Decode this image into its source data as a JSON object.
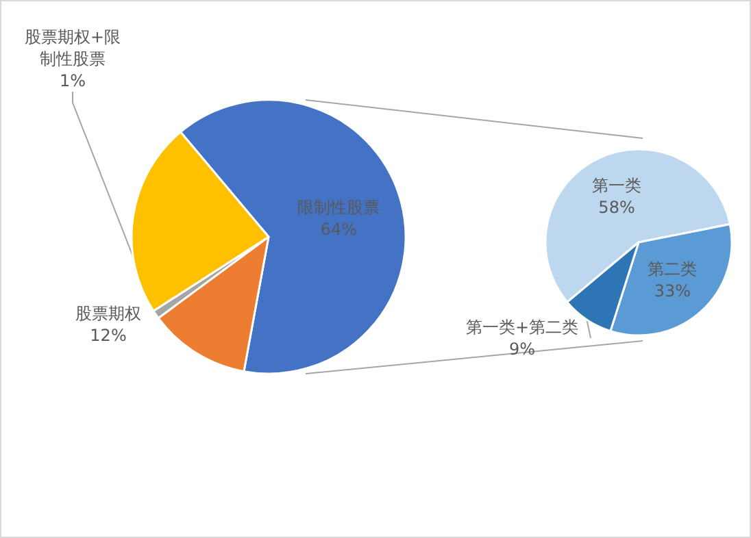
{
  "chart_data": [
    {
      "type": "pie",
      "categories": [
        "限制性股票",
        "股票期权",
        "股票期权+限制性股票",
        null
      ],
      "values": [
        64,
        12,
        1,
        23
      ],
      "colors": [
        "#4472c4",
        "#ed7d31",
        "#a5a5a5",
        "#ffc000"
      ],
      "value_labels": [
        "64%",
        "12%",
        "1%",
        null
      ]
    },
    {
      "type": "pie",
      "categories": [
        "第一类",
        "第二类",
        "第一类+第二类"
      ],
      "values": [
        58,
        33,
        9
      ],
      "colors": [
        "#bdd7ee",
        "#5b9bd5",
        "#2e75b6"
      ],
      "value_labels": [
        "58%",
        "33%",
        "9%"
      ]
    }
  ]
}
